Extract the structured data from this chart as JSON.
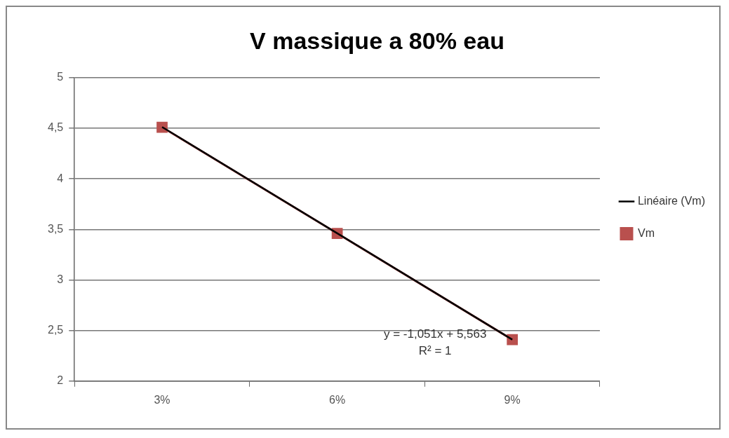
{
  "chart_data": {
    "type": "line",
    "title": "V massique a 80% eau",
    "categories": [
      "3%",
      "6%",
      "9%"
    ],
    "series": [
      {
        "name": "Vm",
        "color": "#b9504e",
        "values": [
          4.51,
          3.46,
          2.41
        ],
        "marker": "square"
      },
      {
        "name": "Linéaire (Vm)",
        "type": "line",
        "color": "#000000",
        "x": [
          "3%",
          "6%",
          "9%"
        ],
        "values": [
          4.512,
          3.461,
          2.41
        ],
        "marker": "none"
      }
    ],
    "ylim": [
      2,
      5
    ],
    "yticks": [
      2,
      {
        "value": 2.5,
        "label": "2,5"
      },
      3,
      {
        "value": 3.5,
        "label": "3,5"
      },
      4,
      {
        "value": 4.5,
        "label": "4,5"
      },
      5
    ],
    "grid": "y",
    "legend": "right",
    "annotations": [
      "y = -1,051x + 5,563",
      "R² = 1"
    ]
  }
}
